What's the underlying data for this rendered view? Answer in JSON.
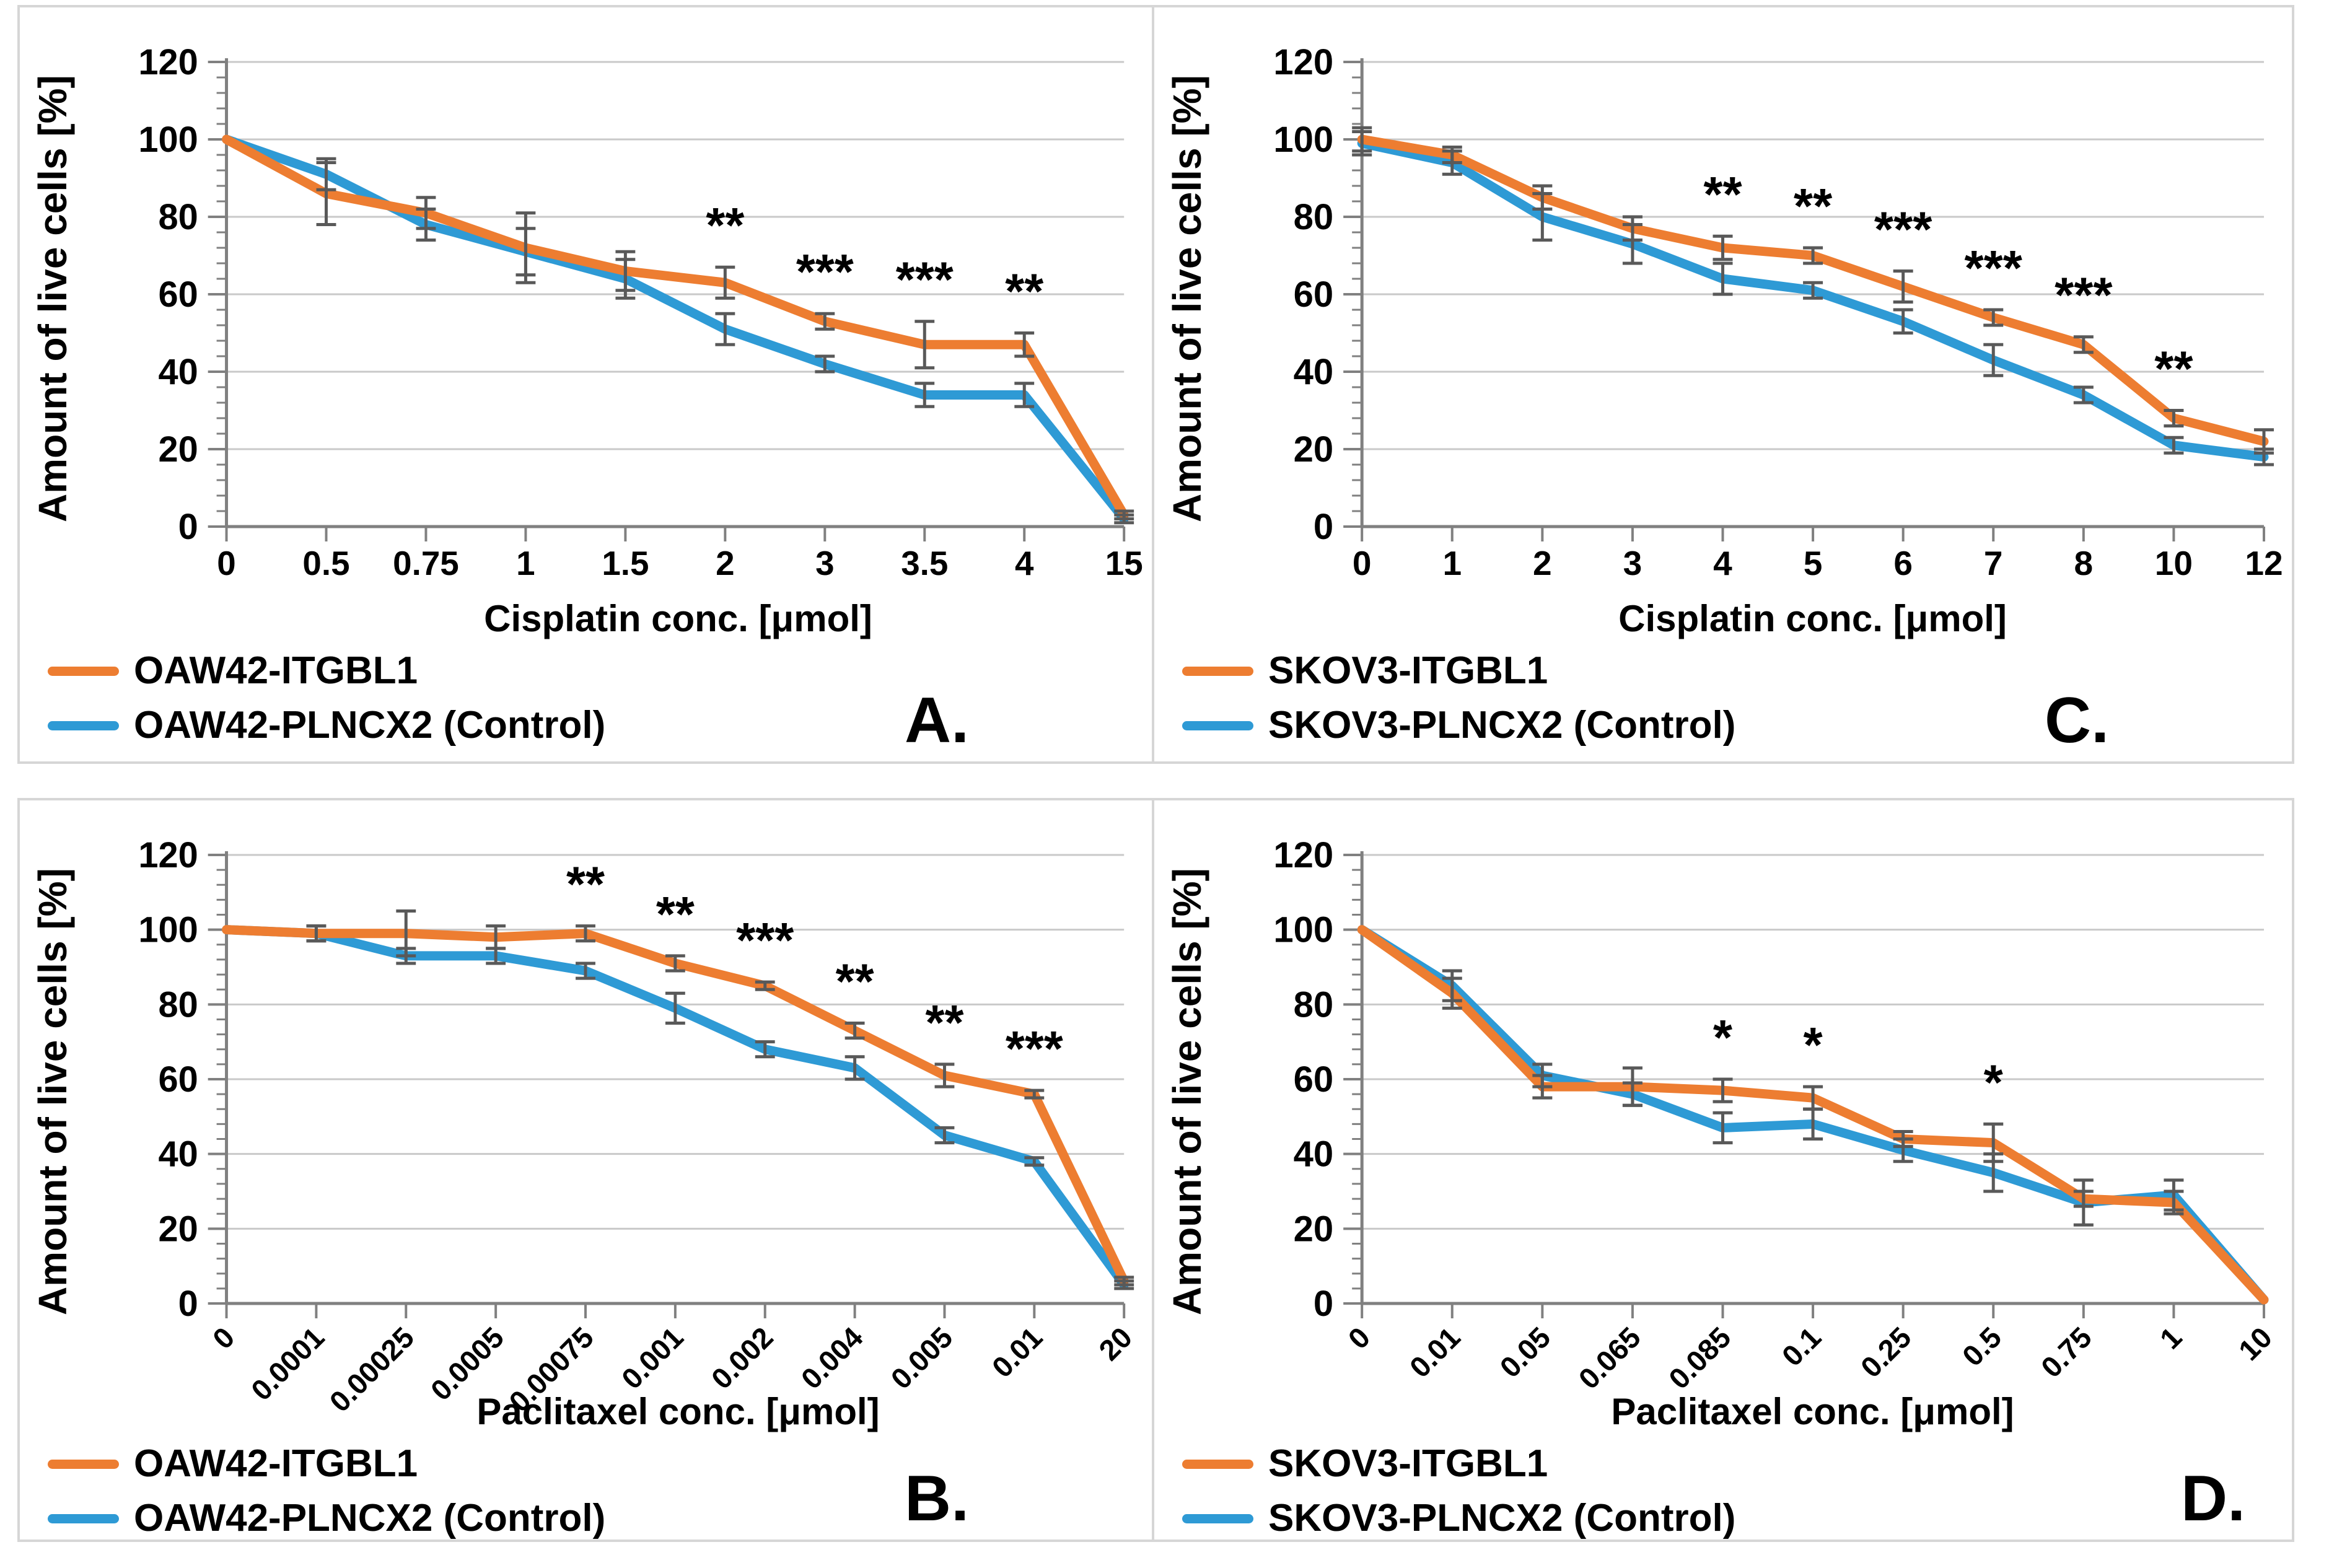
{
  "colors": {
    "orange_series": "#ED7D31",
    "blue_series": "#2E9AD5",
    "error_bar": "#595959",
    "gridline": "#C9C9C9",
    "axis": "#808080"
  },
  "axes": {
    "y_label": "Amount of live cells [%]",
    "y_ticks": [
      0,
      20,
      40,
      60,
      80,
      100,
      120
    ]
  },
  "chart_data": [
    {
      "type": "line",
      "panel_label": "A.",
      "xlabel": "Cisplatin conc. [μmol]",
      "ylabel": "Amount of live cells [%]",
      "ylim": [
        0,
        120
      ],
      "ytick_step": 20,
      "grid": true,
      "legend_position": "bottom-left",
      "rotated_x_labels": false,
      "categories": [
        "0",
        "0.5",
        "0.75",
        "1",
        "1.5",
        "2",
        "3",
        "3.5",
        "4",
        "15"
      ],
      "series": [
        {
          "name": "OAW42-ITGBL1",
          "color": "#ED7D31",
          "values": [
            100,
            86,
            81,
            72,
            66,
            63,
            53,
            47,
            47,
            3
          ],
          "errors": [
            0,
            8,
            4,
            9,
            5,
            4,
            2,
            6,
            3,
            1
          ]
        },
        {
          "name": "OAW42-PLNCX2 (Control)",
          "color": "#2E9AD5",
          "values": [
            100,
            91,
            78,
            71,
            64,
            51,
            42,
            34,
            34,
            2
          ],
          "errors": [
            0,
            4,
            4,
            6,
            5,
            4,
            2,
            3,
            3,
            1
          ]
        }
      ],
      "significance": [
        {
          "index": 5,
          "label": "**"
        },
        {
          "index": 6,
          "label": "***"
        },
        {
          "index": 7,
          "label": "***"
        },
        {
          "index": 8,
          "label": "**"
        }
      ]
    },
    {
      "type": "line",
      "panel_label": "B.",
      "xlabel": "Paclitaxel conc. [μmol]",
      "ylabel": "Amount of live cells [%]",
      "ylim": [
        0,
        120
      ],
      "ytick_step": 20,
      "grid": true,
      "legend_position": "bottom-left",
      "rotated_x_labels": true,
      "categories": [
        "0",
        "0.0001",
        "0.00025",
        "0.0005",
        "0.00075",
        "0.001",
        "0.002",
        "0.004",
        "0.005",
        "0.01",
        "20"
      ],
      "series": [
        {
          "name": "OAW42-ITGBL1",
          "color": "#ED7D31",
          "values": [
            100,
            99,
            99,
            98,
            99,
            91,
            85,
            73,
            61,
            56,
            6
          ],
          "errors": [
            0,
            2,
            6,
            3,
            2,
            2,
            1,
            2,
            3,
            1,
            1
          ]
        },
        {
          "name": "OAW42-PLNCX2 (Control)",
          "color": "#2E9AD5",
          "values": [
            100,
            99,
            93,
            93,
            89,
            79,
            68,
            63,
            45,
            38,
            5
          ],
          "errors": [
            0,
            2,
            2,
            2,
            2,
            4,
            2,
            3,
            2,
            1,
            1
          ]
        }
      ],
      "significance": [
        {
          "index": 4,
          "label": "**"
        },
        {
          "index": 5,
          "label": "**"
        },
        {
          "index": 6,
          "label": "***"
        },
        {
          "index": 7,
          "label": "**"
        },
        {
          "index": 8,
          "label": "**"
        },
        {
          "index": 9,
          "label": "***"
        }
      ]
    },
    {
      "type": "line",
      "panel_label": "C.",
      "xlabel": "Cisplatin conc. [μmol]",
      "ylabel": "Amount of live cells [%]",
      "ylim": [
        0,
        120
      ],
      "ytick_step": 20,
      "grid": true,
      "legend_position": "bottom-left",
      "rotated_x_labels": false,
      "categories": [
        "0",
        "1",
        "2",
        "3",
        "4",
        "5",
        "6",
        "7",
        "8",
        "10",
        "12"
      ],
      "series": [
        {
          "name": "SKOV3-ITGBL1",
          "color": "#ED7D31",
          "values": [
            100,
            96,
            85,
            77,
            72,
            70,
            62,
            54,
            47,
            28,
            22
          ],
          "errors": [
            3,
            2,
            3,
            3,
            3,
            2,
            4,
            2,
            2,
            2,
            3
          ]
        },
        {
          "name": "SKOV3-PLNCX2 (Control)",
          "color": "#2E9AD5",
          "values": [
            99,
            94,
            80,
            73,
            64,
            61,
            53,
            43,
            34,
            21,
            18
          ],
          "errors": [
            3,
            3,
            6,
            5,
            4,
            2,
            3,
            4,
            2,
            2,
            2
          ]
        }
      ],
      "significance": [
        {
          "index": 4,
          "label": "**"
        },
        {
          "index": 5,
          "label": "**"
        },
        {
          "index": 6,
          "label": "***"
        },
        {
          "index": 7,
          "label": "***"
        },
        {
          "index": 8,
          "label": "***"
        },
        {
          "index": 9,
          "label": "**"
        }
      ]
    },
    {
      "type": "line",
      "panel_label": "D.",
      "xlabel": "Paclitaxel conc. [μmol]",
      "ylabel": "Amount of live cells [%]",
      "ylim": [
        0,
        120
      ],
      "ytick_step": 20,
      "grid": true,
      "legend_position": "bottom-left",
      "rotated_x_labels": true,
      "categories": [
        "0",
        "0.01",
        "0.05",
        "0.065",
        "0.085",
        "0.1",
        "0.25",
        "0.5",
        "0.75",
        "1",
        "10"
      ],
      "series": [
        {
          "name": "SKOV3-ITGBL1",
          "color": "#ED7D31",
          "values": [
            100,
            83,
            58,
            58,
            57,
            55,
            44,
            43,
            28,
            27,
            1
          ],
          "errors": [
            0,
            4,
            3,
            5,
            3,
            3,
            2,
            5,
            2,
            3,
            0
          ]
        },
        {
          "name": "SKOV3-PLNCX2 (Control)",
          "color": "#2E9AD5",
          "values": [
            100,
            85,
            61,
            56,
            47,
            48,
            41,
            35,
            27,
            29,
            1
          ],
          "errors": [
            0,
            4,
            3,
            3,
            4,
            4,
            3,
            5,
            6,
            4,
            0
          ]
        }
      ],
      "significance": [
        {
          "index": 4,
          "label": "*"
        },
        {
          "index": 5,
          "label": "*"
        },
        {
          "index": 7,
          "label": "*"
        }
      ]
    }
  ]
}
